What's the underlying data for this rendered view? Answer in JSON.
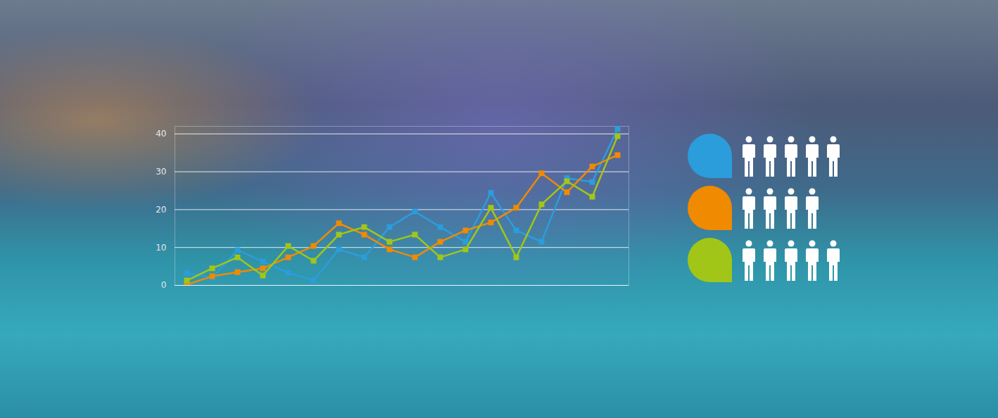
{
  "chart_data": {
    "type": "line",
    "categories": [
      null,
      null,
      null,
      null,
      null,
      null,
      null,
      null,
      null,
      null,
      null,
      null,
      null,
      null,
      null,
      null,
      null,
      null
    ],
    "series": [
      {
        "color": "#2b9ddb",
        "marker": "square",
        "people": 5,
        "values": [
          3.3,
          2.0,
          9.3,
          6.3,
          3.3,
          1.3,
          9.5,
          7.4,
          15.4,
          19.5,
          15.4,
          11.5,
          24.4,
          14.5,
          11.5,
          28.3,
          27.3,
          41.3
        ]
      },
      {
        "color": "#f08a00",
        "marker": "square",
        "people": 4,
        "values": [
          0.2,
          2.4,
          3.5,
          4.5,
          7.4,
          10.4,
          16.4,
          13.4,
          9.5,
          7.4,
          11.5,
          14.5,
          16.6,
          20.5,
          29.6,
          24.6,
          31.4,
          34.4
        ]
      },
      {
        "color": "#a2c617",
        "marker": "square",
        "people": 5,
        "values": [
          1.3,
          4.5,
          7.4,
          2.6,
          10.4,
          6.5,
          13.4,
          15.4,
          11.5,
          13.4,
          7.4,
          9.5,
          20.5,
          7.4,
          21.4,
          27.5,
          23.4,
          39.4
        ]
      }
    ],
    "ylim": [
      0,
      42
    ],
    "yticks": [
      0,
      10,
      20,
      30,
      40
    ],
    "grid": true,
    "tick_labels": "y"
  }
}
